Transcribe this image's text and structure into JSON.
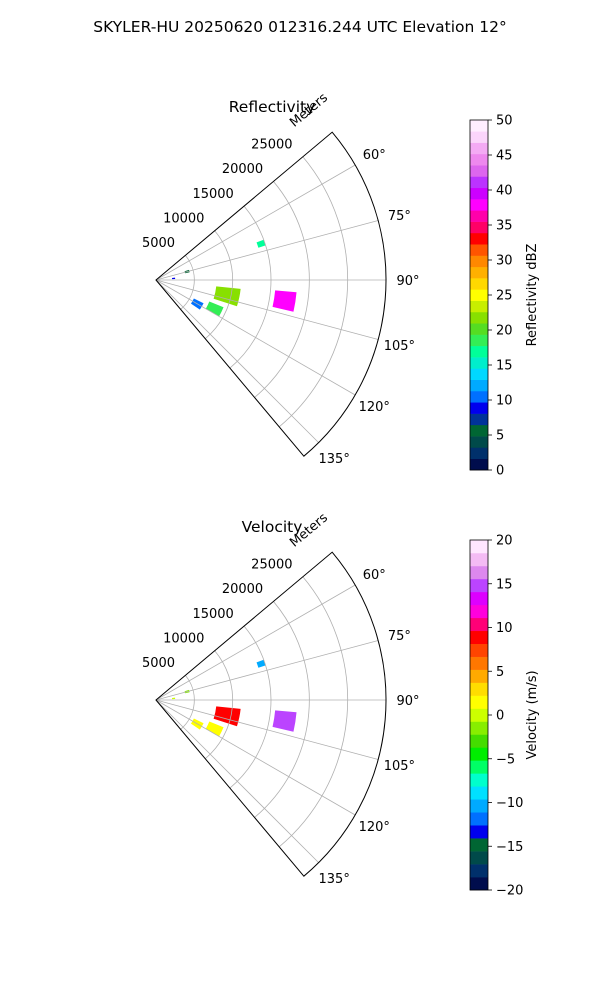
{
  "figure": {
    "title": "SKYLER-HU  20250620  012316.244 UTC Elevation 12°"
  },
  "chart_data": [
    {
      "type": "polar-sector",
      "title": "Reflectivity",
      "rlabel": "Meters",
      "rlim": [
        0,
        30000
      ],
      "r_ticks": [
        5000,
        10000,
        15000,
        20000,
        25000
      ],
      "r_tick_labels": [
        "5000",
        "10000",
        "15000",
        "20000",
        "25000"
      ],
      "theta_range_deg": [
        50,
        140
      ],
      "theta_ticks": [
        60,
        75,
        90,
        105,
        120,
        135
      ],
      "theta_tick_labels": [
        "60°",
        "75°",
        "90°",
        "105°",
        "120°",
        "135°"
      ],
      "grid": true,
      "colorbar": {
        "label": "Reflectivity dBZ",
        "min": 0,
        "max": 50,
        "ticks": [
          0,
          5,
          10,
          15,
          20,
          25,
          30,
          35,
          40,
          45,
          50
        ],
        "tick_labels": [
          "0",
          "5",
          "10",
          "15",
          "20",
          "25",
          "30",
          "35",
          "40",
          "45",
          "50"
        ],
        "colors": [
          "#000d4d",
          "#00306b",
          "#004a4a",
          "#006633",
          "#003399",
          "#0000ee",
          "#0070ff",
          "#00aaff",
          "#00d8ff",
          "#00eecc",
          "#00ff99",
          "#33ee55",
          "#55dd22",
          "#88e000",
          "#c8ee00",
          "#ffff00",
          "#ffd800",
          "#ffb000",
          "#ff8800",
          "#ff5500",
          "#ff0000",
          "#ff0066",
          "#ff00aa",
          "#ff00ff",
          "#cc00ff",
          "#bb33ff",
          "#dd66ee",
          "#ee88ee",
          "#f4aaf4",
          "#fbd5fb",
          "#ffeeff"
        ]
      },
      "echoes": [
        {
          "r": 17000,
          "az": 99,
          "dr": 1400,
          "daz": 4,
          "value": 38
        },
        {
          "r": 14500,
          "az": 71,
          "dr": 500,
          "daz": 1.5,
          "value": 17
        },
        {
          "r": 9500,
          "az": 102,
          "dr": 1600,
          "daz": 6,
          "value": 22
        },
        {
          "r": 8500,
          "az": 116,
          "dr": 1000,
          "daz": 4,
          "value": 18
        },
        {
          "r": 6200,
          "az": 120,
          "dr": 700,
          "daz": 4,
          "value": 10
        },
        {
          "r": 4200,
          "az": 75,
          "dr": 300,
          "daz": 2,
          "value": 5
        },
        {
          "r": 2300,
          "az": 85,
          "dr": 200,
          "daz": 2,
          "value": 9
        }
      ]
    },
    {
      "type": "polar-sector",
      "title": "Velocity",
      "rlabel": "Meters",
      "rlim": [
        0,
        30000
      ],
      "r_ticks": [
        5000,
        10000,
        15000,
        20000,
        25000
      ],
      "r_tick_labels": [
        "5000",
        "10000",
        "15000",
        "20000",
        "25000"
      ],
      "theta_range_deg": [
        50,
        140
      ],
      "theta_ticks": [
        60,
        75,
        90,
        105,
        120,
        135
      ],
      "theta_tick_labels": [
        "60°",
        "75°",
        "90°",
        "105°",
        "120°",
        "135°"
      ],
      "grid": true,
      "colorbar": {
        "label": "Velocity (m/s)",
        "min": -20,
        "max": 20,
        "ticks": [
          -20,
          -15,
          -10,
          -5,
          0,
          5,
          10,
          15,
          20
        ],
        "tick_labels": [
          "−20",
          "−15",
          "−10",
          "−5",
          "0",
          "5",
          "10",
          "15",
          "20"
        ],
        "colors": [
          "#000d4d",
          "#00306b",
          "#004a4a",
          "#006633",
          "#0000ee",
          "#0070ff",
          "#00aaff",
          "#00e0ff",
          "#00ffcc",
          "#00ff66",
          "#00ee00",
          "#44dd00",
          "#88ee00",
          "#ccff00",
          "#ffff00",
          "#ffdd00",
          "#ffaa00",
          "#ff7700",
          "#ff4400",
          "#ff0000",
          "#ff0077",
          "#ff00dd",
          "#dd00ff",
          "#bb44ff",
          "#dd88ee",
          "#f4bbf4",
          "#ffe6ff"
        ]
      },
      "echoes": [
        {
          "r": 17000,
          "az": 99,
          "dr": 1400,
          "daz": 4,
          "value": 15
        },
        {
          "r": 14500,
          "az": 71,
          "dr": 500,
          "daz": 1.5,
          "value": -11
        },
        {
          "r": 9500,
          "az": 102,
          "dr": 1600,
          "daz": 6,
          "value": 9
        },
        {
          "r": 8500,
          "az": 116,
          "dr": 1000,
          "daz": 4,
          "value": 2
        },
        {
          "r": 6200,
          "az": 120,
          "dr": 700,
          "daz": 4,
          "value": 1
        },
        {
          "r": 4200,
          "az": 75,
          "dr": 300,
          "daz": 2,
          "value": -2
        },
        {
          "r": 2300,
          "az": 85,
          "dr": 200,
          "daz": 2,
          "value": 0
        }
      ]
    }
  ]
}
